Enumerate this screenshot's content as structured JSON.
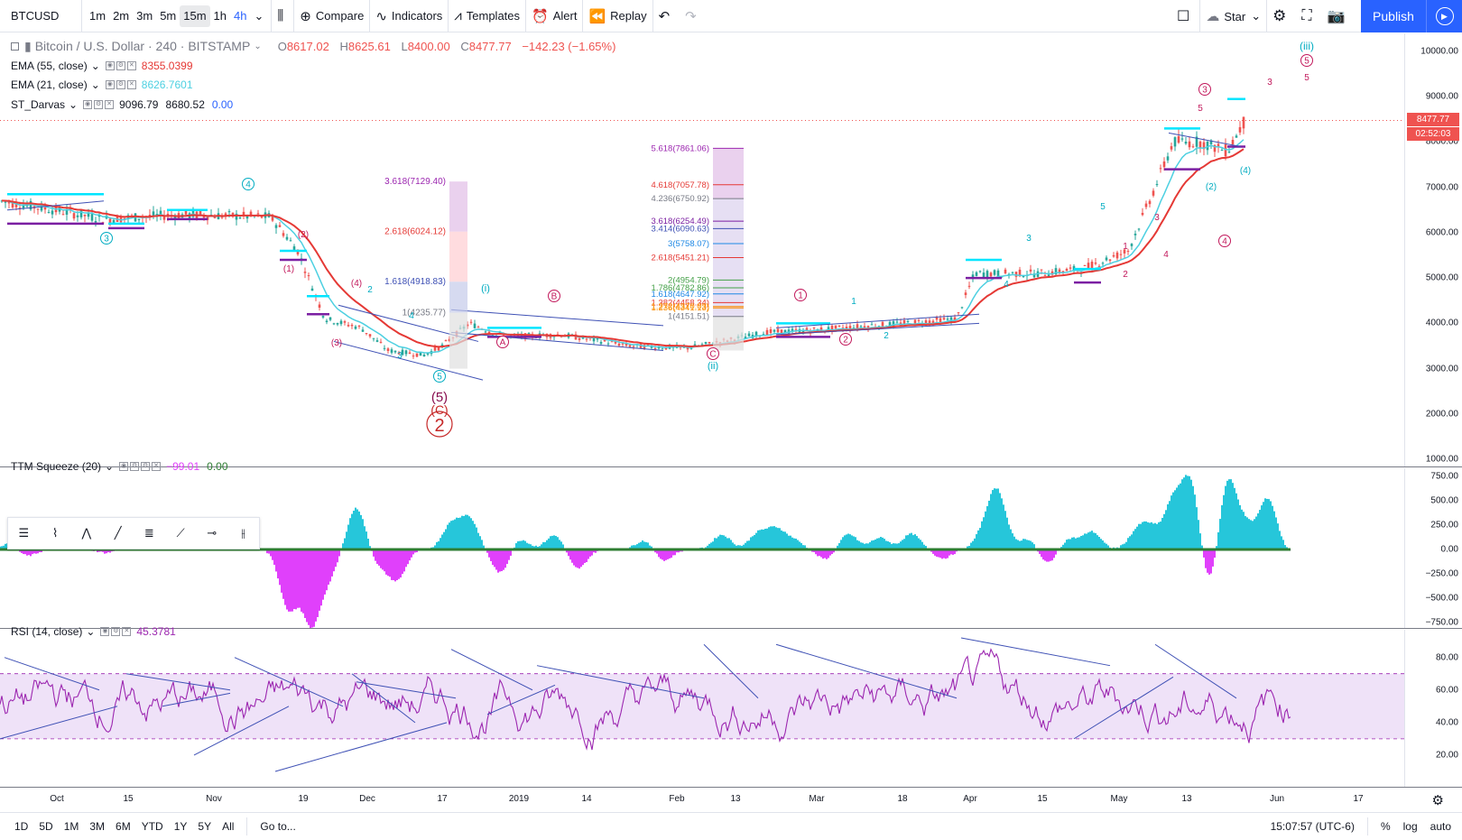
{
  "toolbar": {
    "symbol": "BTCUSD",
    "intervals": [
      "1m",
      "2m",
      "3m",
      "5m",
      "15m",
      "1h",
      "4h"
    ],
    "active_interval": "15m",
    "highlight_interval": "4h",
    "compare_label": "Compare",
    "indicators_label": "Indicators",
    "templates_label": "Templates",
    "alert_label": "Alert",
    "replay_label": "Replay",
    "star_label": "Star",
    "publish_label": "Publish"
  },
  "main_pane": {
    "title": "Bitcoin / U.S. Dollar · 240 · BITSTAMP",
    "ohlc": {
      "o_label": "O",
      "o": "8617.02",
      "h_label": "H",
      "h": "8625.61",
      "l_label": "L",
      "l": "8400.00",
      "c_label": "C",
      "c": "8477.77",
      "change": "−142.23 (−1.65%)"
    },
    "indicators": [
      {
        "name": "EMA (55, close)",
        "values": [
          "8355.0399"
        ],
        "color": "#e53935"
      },
      {
        "name": "EMA (21, close)",
        "values": [
          "8626.7601"
        ],
        "color": "#4dd0e1"
      },
      {
        "name": "ST_Darvas",
        "values": [
          "9096.79",
          "8680.52",
          "0.00"
        ],
        "color": "#2962ff"
      }
    ],
    "price_ticks": [
      "10000.00",
      "9000.00",
      "8000.00",
      "7000.00",
      "6000.00",
      "5000.00",
      "4000.00",
      "3000.00",
      "2000.00",
      "1000.00"
    ],
    "last_price": "8477.77",
    "countdown": "02:52:03",
    "fib_left": [
      "3.618(7129.40)",
      "2.618(6024.12)",
      "1.618(4918.83)",
      "1(4235.77)"
    ],
    "fib_right": [
      "5.618(7861.06)",
      "4.618(7057.78)",
      "4.236(6750.92)",
      "3.618(6254.49)",
      "3.414(6090.63)",
      "3(5758.07)",
      "2.618(5451.21)",
      "2(4954.79)",
      "1.786(4782.86)",
      "1.618(4647.92)",
      "1.382(4458.34)",
      "1.272(4370.03)",
      "1.236(4341.13)",
      "1(4151.51)"
    ]
  },
  "ttm_pane": {
    "name": "TTM Squeeze (20)",
    "values": [
      "−99.01",
      "0.00"
    ],
    "ticks": [
      "750.00",
      "500.00",
      "250.00",
      "0.00",
      "−250.00",
      "−500.00",
      "−750.00"
    ]
  },
  "rsi_pane": {
    "name": "RSI (14, close)",
    "value": "45.3781",
    "ticks": [
      "80.00",
      "60.00",
      "40.00",
      "20.00"
    ]
  },
  "time_axis": [
    "Oct",
    "15",
    "Nov",
    "19",
    "Dec",
    "17",
    "2019",
    "14",
    "Feb",
    "13",
    "Mar",
    "18",
    "Apr",
    "15",
    "May",
    "13",
    "Jun",
    "17"
  ],
  "bottom_bar": {
    "ranges": [
      "1D",
      "5D",
      "1M",
      "3M",
      "6M",
      "YTD",
      "1Y",
      "5Y",
      "All"
    ],
    "goto_label": "Go to...",
    "clock": "15:07:57 (UTC-6)",
    "percent_label": "%",
    "log_label": "log",
    "auto_label": "auto"
  },
  "colors": {
    "accent": "#2962ff",
    "ema55": "#e53935",
    "ema21": "#4dd0e1",
    "squeeze_pos": "#26c6da",
    "squeeze_neg": "#e040fb",
    "rsi": "#9c27b0",
    "last_price_tag": "#ef5350",
    "wave_teal": "#00acc1",
    "wave_purple": "#c2185b"
  }
}
